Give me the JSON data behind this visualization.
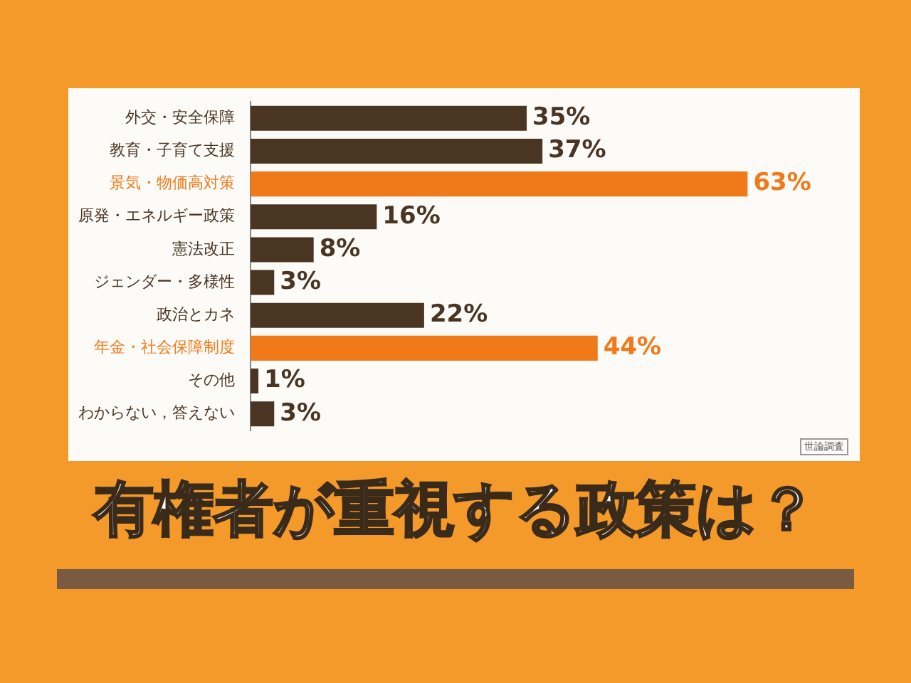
{
  "chart_data": {
    "type": "bar",
    "orientation": "horizontal",
    "title": "有権者が重視する政策は？",
    "categories": [
      "外交・安全保障",
      "教育・子育て支援",
      "景気・物価高対策",
      "原発・エネルギー政策",
      "憲法改正",
      "ジェンダー・多様性",
      "政治とカネ",
      "年金・社会保障制度",
      "その他",
      "わからない，答えない"
    ],
    "values": [
      35,
      37,
      63,
      16,
      8,
      3,
      22,
      44,
      1,
      3
    ],
    "value_labels": [
      "35%",
      "37%",
      "63%",
      "16%",
      "8%",
      "3%",
      "22%",
      "44%",
      "1%",
      "3%"
    ],
    "colors": [
      "#4a3422",
      "#4a3422",
      "#f07a1a",
      "#4a3422",
      "#4a3422",
      "#4a3422",
      "#4a3422",
      "#f07a1a",
      "#4a3422",
      "#4a3422"
    ],
    "annotations": [
      "世論調査"
    ],
    "tick_labels": "y",
    "grid": false,
    "legend": false
  }
}
